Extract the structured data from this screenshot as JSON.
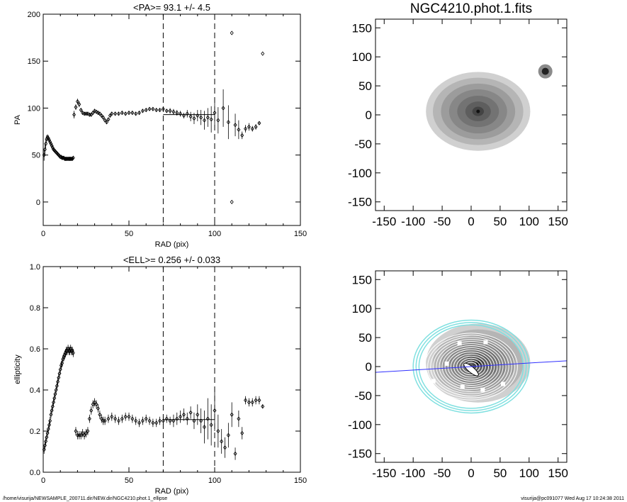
{
  "footer": {
    "left": "/home/visurija/NEWSAMPLE_200711.dir/NEW.dir/NGC4210.phot.1_ellipse",
    "right": "visurija@pc091077  Wed Aug 17 10:24:38 2011"
  },
  "chart_data": [
    {
      "type": "scatter",
      "title": "<PA>=  93.1 +/-   4.5",
      "xlabel": "RAD (pix)",
      "ylabel": "PA",
      "xlim": [
        0,
        150
      ],
      "ylim": [
        -25,
        200
      ],
      "xticks": [
        "0",
        "50",
        "100",
        "150"
      ],
      "yticks": [
        "0",
        "50",
        "100",
        "150",
        "200"
      ],
      "vlines": [
        70,
        100
      ],
      "mean_line": {
        "x": [
          70,
          100
        ],
        "y": 93.1
      },
      "points": [
        [
          0.5,
          50,
          6
        ],
        [
          1,
          56,
          5
        ],
        [
          1.5,
          62,
          5
        ],
        [
          2,
          67,
          4
        ],
        [
          2.5,
          69,
          3
        ],
        [
          3,
          68,
          3
        ],
        [
          3.5,
          66,
          2
        ],
        [
          4,
          64,
          2
        ],
        [
          4.5,
          62,
          2
        ],
        [
          5,
          60,
          2
        ],
        [
          5.5,
          58,
          2
        ],
        [
          6,
          56,
          2
        ],
        [
          6.5,
          55,
          2
        ],
        [
          7,
          54,
          2
        ],
        [
          7.5,
          53,
          1.5
        ],
        [
          8,
          52,
          1.5
        ],
        [
          8.5,
          51,
          1.5
        ],
        [
          9,
          50,
          1.5
        ],
        [
          9.5,
          49,
          1.5
        ],
        [
          10,
          48,
          1.5
        ],
        [
          10.5,
          48,
          1.5
        ],
        [
          11,
          47,
          1.5
        ],
        [
          11.5,
          47,
          1.5
        ],
        [
          12,
          47,
          1.5
        ],
        [
          12.5,
          46,
          1.5
        ],
        [
          13,
          46,
          1.5
        ],
        [
          13.5,
          46,
          1.5
        ],
        [
          14,
          46,
          1.5
        ],
        [
          14.5,
          46,
          1.5
        ],
        [
          15,
          46,
          1.5
        ],
        [
          15.5,
          46,
          1.5
        ],
        [
          16,
          46,
          1.5
        ],
        [
          16.5,
          46,
          1.5
        ],
        [
          17,
          46,
          1.5
        ],
        [
          17.5,
          47,
          1.5
        ],
        [
          18,
          93,
          4
        ],
        [
          19,
          101,
          3
        ],
        [
          20,
          107,
          3
        ],
        [
          21,
          104,
          3
        ],
        [
          22,
          98,
          2
        ],
        [
          23,
          95,
          2
        ],
        [
          24,
          94,
          2
        ],
        [
          25,
          94,
          2
        ],
        [
          26,
          94,
          2
        ],
        [
          27,
          93,
          2
        ],
        [
          28,
          93,
          2
        ],
        [
          29,
          95,
          2
        ],
        [
          30,
          97,
          2
        ],
        [
          31,
          96,
          2
        ],
        [
          32,
          95,
          2
        ],
        [
          33,
          94,
          2
        ],
        [
          34,
          92,
          2
        ],
        [
          35,
          90,
          2
        ],
        [
          36,
          87,
          2
        ],
        [
          37,
          85,
          2
        ],
        [
          38,
          88,
          2
        ],
        [
          39,
          92,
          2
        ],
        [
          40,
          94,
          2
        ],
        [
          42,
          94,
          2
        ],
        [
          44,
          94,
          2
        ],
        [
          46,
          95,
          2
        ],
        [
          48,
          94,
          2
        ],
        [
          50,
          95,
          2
        ],
        [
          52,
          95,
          2
        ],
        [
          54,
          94,
          2
        ],
        [
          56,
          95,
          2
        ],
        [
          58,
          97,
          2
        ],
        [
          60,
          98,
          2
        ],
        [
          62,
          99,
          2
        ],
        [
          64,
          99,
          2
        ],
        [
          66,
          98,
          2
        ],
        [
          68,
          98,
          2
        ],
        [
          70,
          99,
          2
        ],
        [
          72,
          97,
          2
        ],
        [
          74,
          97,
          3
        ],
        [
          76,
          96,
          3
        ],
        [
          78,
          95,
          3
        ],
        [
          80,
          94,
          3
        ],
        [
          82,
          92,
          3
        ],
        [
          84,
          94,
          4
        ],
        [
          86,
          91,
          5
        ],
        [
          88,
          89,
          6
        ],
        [
          90,
          92,
          6
        ],
        [
          92,
          90,
          8
        ],
        [
          94,
          87,
          10
        ],
        [
          96,
          90,
          10
        ],
        [
          98,
          88,
          14
        ],
        [
          100,
          95,
          16
        ],
        [
          102,
          87,
          14
        ],
        [
          105,
          100,
          20
        ],
        [
          108,
          85,
          18
        ],
        [
          110,
          180,
          0
        ],
        [
          110,
          0,
          0
        ],
        [
          112,
          82,
          12
        ],
        [
          114,
          77,
          10
        ],
        [
          116,
          71,
          4
        ],
        [
          118,
          78,
          4
        ],
        [
          120,
          80,
          4
        ],
        [
          122,
          78,
          3
        ],
        [
          124,
          80,
          3
        ],
        [
          126,
          84,
          2
        ],
        [
          128,
          158,
          0
        ]
      ]
    },
    {
      "type": "scatter",
      "title": "<ELL>= 0.256 +/-  0.033",
      "xlabel": "RAD (pix)",
      "ylabel": "ellipticity",
      "xlim": [
        0,
        150
      ],
      "ylim": [
        0.0,
        1.0
      ],
      "xticks": [
        "0",
        "50",
        "100",
        "150"
      ],
      "yticks": [
        "0.0",
        "0.2",
        "0.4",
        "0.6",
        "0.8",
        "1.0"
      ],
      "vlines": [
        70,
        100
      ],
      "mean_line": {
        "x": [
          70,
          100
        ],
        "y": 0.256
      },
      "points": [
        [
          0.5,
          0.11,
          0.02
        ],
        [
          1,
          0.13,
          0.02
        ],
        [
          1.5,
          0.15,
          0.02
        ],
        [
          2,
          0.17,
          0.02
        ],
        [
          2.5,
          0.19,
          0.02
        ],
        [
          3,
          0.21,
          0.02
        ],
        [
          3.5,
          0.23,
          0.02
        ],
        [
          4,
          0.25,
          0.02
        ],
        [
          4.5,
          0.28,
          0.02
        ],
        [
          5,
          0.3,
          0.02
        ],
        [
          5.5,
          0.32,
          0.02
        ],
        [
          6,
          0.34,
          0.02
        ],
        [
          6.5,
          0.36,
          0.02
        ],
        [
          7,
          0.38,
          0.02
        ],
        [
          7.5,
          0.4,
          0.02
        ],
        [
          8,
          0.42,
          0.02
        ],
        [
          8.5,
          0.44,
          0.02
        ],
        [
          9,
          0.46,
          0.02
        ],
        [
          9.5,
          0.48,
          0.02
        ],
        [
          10,
          0.5,
          0.02
        ],
        [
          10.5,
          0.52,
          0.02
        ],
        [
          11,
          0.53,
          0.02
        ],
        [
          11.5,
          0.55,
          0.02
        ],
        [
          12,
          0.56,
          0.02
        ],
        [
          12.5,
          0.57,
          0.02
        ],
        [
          13,
          0.58,
          0.02
        ],
        [
          13.5,
          0.59,
          0.02
        ],
        [
          14,
          0.59,
          0.02
        ],
        [
          14.5,
          0.6,
          0.02
        ],
        [
          15,
          0.59,
          0.02
        ],
        [
          15.5,
          0.59,
          0.02
        ],
        [
          16,
          0.6,
          0.02
        ],
        [
          16.5,
          0.59,
          0.02
        ],
        [
          17,
          0.59,
          0.02
        ],
        [
          17.5,
          0.58,
          0.02
        ],
        [
          19,
          0.2,
          0.02
        ],
        [
          20,
          0.18,
          0.02
        ],
        [
          21,
          0.18,
          0.02
        ],
        [
          22,
          0.18,
          0.02
        ],
        [
          23,
          0.19,
          0.02
        ],
        [
          24,
          0.18,
          0.02
        ],
        [
          25,
          0.19,
          0.02
        ],
        [
          26,
          0.2,
          0.02
        ],
        [
          27,
          0.26,
          0.02
        ],
        [
          28,
          0.3,
          0.02
        ],
        [
          29,
          0.33,
          0.02
        ],
        [
          30,
          0.34,
          0.02
        ],
        [
          31,
          0.33,
          0.02
        ],
        [
          32,
          0.31,
          0.02
        ],
        [
          33,
          0.28,
          0.02
        ],
        [
          34,
          0.26,
          0.02
        ],
        [
          35,
          0.25,
          0.02
        ],
        [
          36,
          0.25,
          0.02
        ],
        [
          38,
          0.26,
          0.02
        ],
        [
          40,
          0.27,
          0.02
        ],
        [
          42,
          0.26,
          0.02
        ],
        [
          44,
          0.25,
          0.02
        ],
        [
          46,
          0.26,
          0.02
        ],
        [
          48,
          0.27,
          0.02
        ],
        [
          50,
          0.27,
          0.02
        ],
        [
          52,
          0.26,
          0.02
        ],
        [
          54,
          0.25,
          0.02
        ],
        [
          56,
          0.24,
          0.02
        ],
        [
          58,
          0.25,
          0.02
        ],
        [
          60,
          0.26,
          0.02
        ],
        [
          62,
          0.25,
          0.02
        ],
        [
          64,
          0.24,
          0.02
        ],
        [
          66,
          0.24,
          0.02
        ],
        [
          68,
          0.25,
          0.02
        ],
        [
          70,
          0.25,
          0.02
        ],
        [
          72,
          0.26,
          0.02
        ],
        [
          74,
          0.25,
          0.02
        ],
        [
          76,
          0.25,
          0.03
        ],
        [
          78,
          0.26,
          0.03
        ],
        [
          80,
          0.27,
          0.03
        ],
        [
          82,
          0.28,
          0.03
        ],
        [
          84,
          0.26,
          0.03
        ],
        [
          86,
          0.29,
          0.03
        ],
        [
          88,
          0.25,
          0.04
        ],
        [
          90,
          0.28,
          0.05
        ],
        [
          92,
          0.25,
          0.06
        ],
        [
          94,
          0.22,
          0.08
        ],
        [
          96,
          0.26,
          0.1
        ],
        [
          98,
          0.23,
          0.1
        ],
        [
          100,
          0.3,
          0.1
        ],
        [
          102,
          0.2,
          0.08
        ],
        [
          104,
          0.15,
          0.06
        ],
        [
          106,
          0.12,
          0.05
        ],
        [
          108,
          0.18,
          0.06
        ],
        [
          110,
          0.28,
          0.06
        ],
        [
          112,
          0.09,
          0.03
        ],
        [
          114,
          0.26,
          0.04
        ],
        [
          116,
          0.19,
          0.03
        ],
        [
          118,
          0.35,
          0.02
        ],
        [
          120,
          0.34,
          0.02
        ],
        [
          122,
          0.34,
          0.02
        ],
        [
          124,
          0.35,
          0.02
        ],
        [
          126,
          0.35,
          0.02
        ],
        [
          128,
          0.32,
          0.01
        ]
      ]
    },
    {
      "type": "heatmap",
      "title": "NGC4210.phot.1.fits",
      "xlim": [
        -165,
        165
      ],
      "ylim": [
        -165,
        165
      ],
      "xticks": [
        "-150",
        "-100",
        "-50",
        "0",
        "50",
        "100",
        "150"
      ],
      "yticks": [
        "-150",
        "-100",
        "-50",
        "0",
        "50",
        "100",
        "150"
      ]
    },
    {
      "type": "heatmap",
      "title": "",
      "xlim": [
        -165,
        165
      ],
      "ylim": [
        -165,
        165
      ],
      "xticks": [
        "-150",
        "-100",
        "-50",
        "0",
        "50",
        "100",
        "150"
      ],
      "yticks": [
        "-150",
        "-100",
        "-50",
        "0",
        "50",
        "100",
        "150"
      ],
      "overlay_line": {
        "x": [
          -165,
          165
        ],
        "y": [
          -10,
          10
        ]
      },
      "colors": {
        "ellipse_outer": "#80e0e0",
        "ellipse_inner": "#ffffff",
        "line": "#3030ff"
      }
    }
  ]
}
